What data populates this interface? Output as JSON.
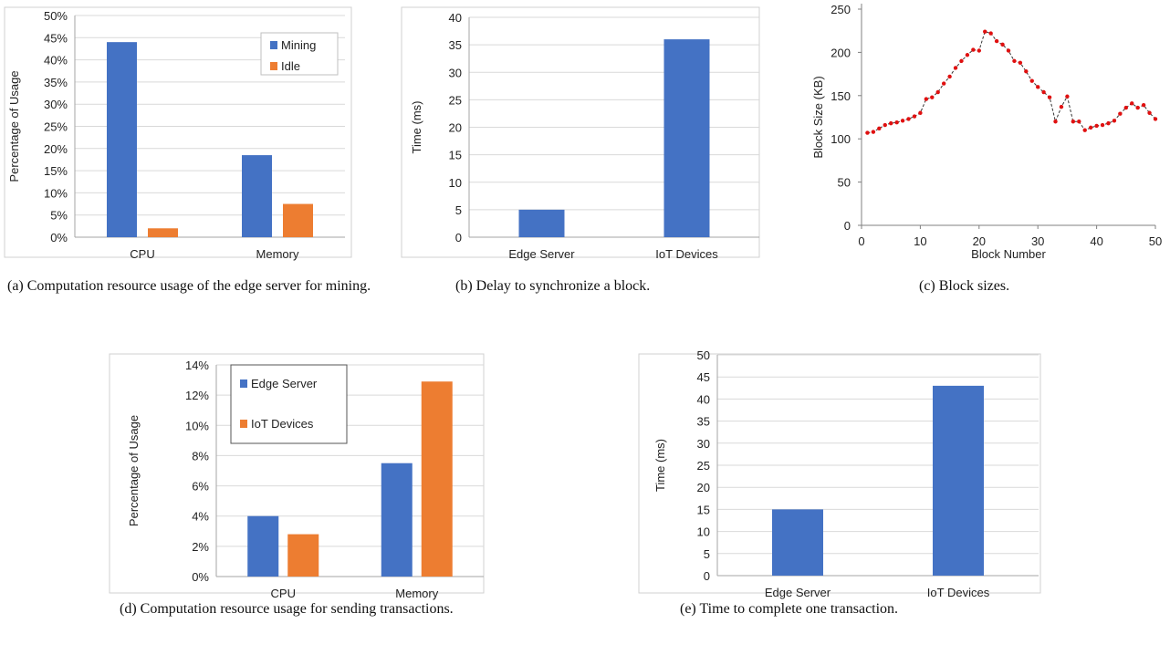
{
  "colors": {
    "blue": "#4472c4",
    "orange": "#ed7d31",
    "grid": "#d9d9d9",
    "axis": "#000000",
    "marker": "#e01010",
    "line": "#333333"
  },
  "captions": {
    "a": "(a) Computation resource usage of the edge server for mining.",
    "b": "(b) Delay to synchronize a block.",
    "c": "(c) Block sizes.",
    "d": "(d) Computation resource usage for sending transactions.",
    "e": "(e) Time to complete one transaction."
  },
  "chart_data": [
    {
      "id": "a",
      "type": "bar",
      "categories": [
        "CPU",
        "Memory"
      ],
      "series": [
        {
          "name": "Mining",
          "values": [
            44,
            18.5
          ]
        },
        {
          "name": "Idle",
          "values": [
            2,
            7.5
          ]
        }
      ],
      "ylabel": "Percentage of Usage",
      "ylim": [
        0,
        50
      ],
      "yticks": [
        "0%",
        "5%",
        "10%",
        "15%",
        "20%",
        "25%",
        "30%",
        "35%",
        "40%",
        "45%",
        "50%"
      ],
      "grid": true,
      "legend": "top-right"
    },
    {
      "id": "b",
      "type": "bar",
      "categories": [
        "Edge Server",
        "IoT Devices"
      ],
      "series": [
        {
          "values": [
            5,
            36
          ]
        }
      ],
      "ylabel": "Time (ms)",
      "ylim": [
        0,
        40
      ],
      "yticks": [
        "0",
        "5",
        "10",
        "15",
        "20",
        "25",
        "30",
        "35",
        "40"
      ],
      "grid": true
    },
    {
      "id": "c",
      "type": "line",
      "x": [
        1,
        2,
        3,
        4,
        5,
        6,
        7,
        8,
        9,
        10,
        11,
        12,
        13,
        14,
        15,
        16,
        17,
        18,
        19,
        20,
        21,
        22,
        23,
        24,
        25,
        26,
        27,
        28,
        29,
        30,
        31,
        32,
        33,
        34,
        35,
        36,
        37,
        38,
        39,
        40,
        41,
        42,
        43,
        44,
        45,
        46,
        47,
        48,
        49,
        50
      ],
      "series": [
        {
          "values": [
            107,
            108,
            112,
            116,
            118,
            119,
            121,
            123,
            126,
            130,
            146,
            148,
            154,
            164,
            172,
            182,
            190,
            197,
            203,
            202,
            224,
            222,
            213,
            209,
            202,
            190,
            188,
            178,
            167,
            160,
            154,
            148,
            120,
            137,
            149,
            120,
            120,
            110,
            113,
            115,
            116,
            118,
            121,
            129,
            136,
            141,
            136,
            139,
            130,
            123
          ]
        }
      ],
      "xlabel": "Block Number",
      "ylabel": "Block Size (KB)",
      "xlim": [
        0,
        50
      ],
      "ylim": [
        0,
        250
      ],
      "xticks": [
        "0",
        "10",
        "20",
        "30",
        "40",
        "50"
      ],
      "yticks": [
        "0",
        "50",
        "100",
        "150",
        "200",
        "250"
      ],
      "grid": false
    },
    {
      "id": "d",
      "type": "bar",
      "categories": [
        "CPU",
        "Memory"
      ],
      "series": [
        {
          "name": "Edge Server",
          "values": [
            4,
            7.5
          ]
        },
        {
          "name": "IoT Devices",
          "values": [
            2.8,
            12.9
          ]
        }
      ],
      "ylabel": "Percentage of Usage",
      "ylim": [
        0,
        14
      ],
      "yticks": [
        "0%",
        "2%",
        "4%",
        "6%",
        "8%",
        "10%",
        "12%",
        "14%"
      ],
      "grid": true,
      "legend": "top-left"
    },
    {
      "id": "e",
      "type": "bar",
      "categories": [
        "Edge Server",
        "IoT Devices"
      ],
      "series": [
        {
          "values": [
            15,
            43
          ]
        }
      ],
      "ylabel": "Time (ms)",
      "ylim": [
        0,
        50
      ],
      "yticks": [
        "0",
        "5",
        "10",
        "15",
        "20",
        "25",
        "30",
        "35",
        "40",
        "45",
        "50"
      ],
      "grid": true
    }
  ]
}
